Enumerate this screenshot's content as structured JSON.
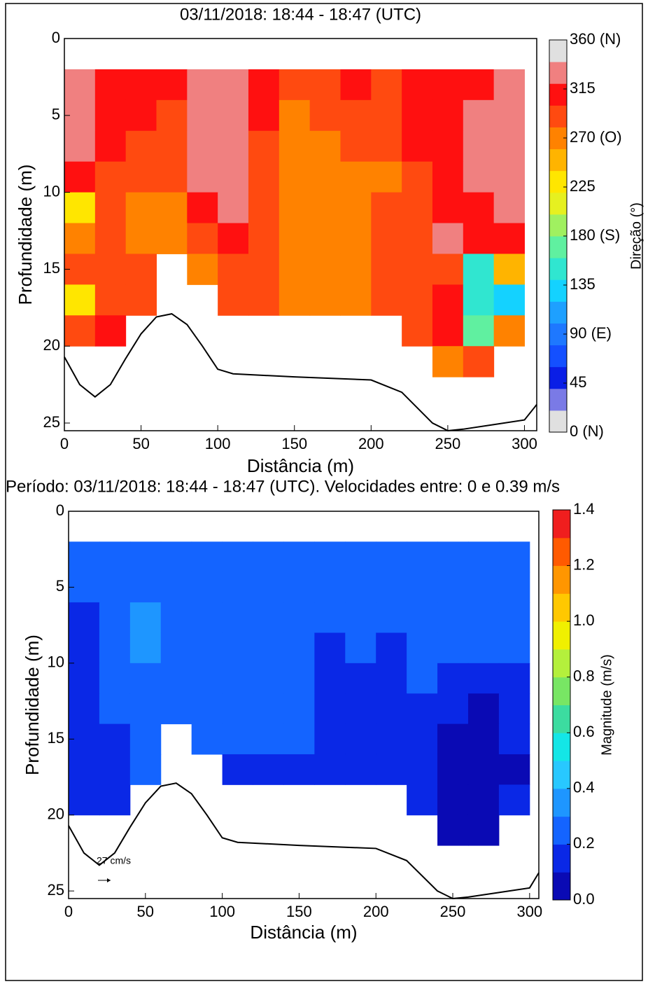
{
  "chart_data": [
    {
      "type": "heatmap",
      "title": "03/11/2018: 18:44 - 18:47 (UTC)",
      "x_label": "Distância (m)",
      "y_label": "Profundidade (m)",
      "colorbar_label": "Direção (°)",
      "xlim": [
        0,
        308
      ],
      "ylim": [
        0,
        25.5
      ],
      "y_inverted": true,
      "xticks": [
        0,
        50,
        100,
        150,
        200,
        250,
        300
      ],
      "yticks": [
        0,
        5,
        10,
        15,
        20,
        25
      ],
      "x": [
        10,
        30,
        50,
        70,
        90,
        110,
        130,
        150,
        170,
        190,
        210,
        230,
        250,
        270,
        290
      ],
      "y": [
        3,
        5,
        7,
        9,
        11,
        13,
        15,
        17,
        19,
        21
      ],
      "values": [
        [
          330,
          300,
          300,
          300,
          330,
          330,
          300,
          280,
          280,
          300,
          280,
          300,
          300,
          300,
          330
        ],
        [
          330,
          300,
          300,
          290,
          330,
          330,
          300,
          270,
          280,
          290,
          280,
          300,
          300,
          330,
          330
        ],
        [
          330,
          300,
          290,
          290,
          330,
          330,
          290,
          260,
          270,
          280,
          280,
          300,
          300,
          330,
          330
        ],
        [
          300,
          290,
          280,
          290,
          330,
          330,
          290,
          260,
          270,
          270,
          270,
          290,
          300,
          330,
          330
        ],
        [
          220,
          290,
          270,
          270,
          300,
          330,
          290,
          260,
          270,
          270,
          280,
          290,
          300,
          300,
          330
        ],
        [
          260,
          290,
          270,
          260,
          280,
          300,
          290,
          260,
          270,
          270,
          280,
          290,
          330,
          300,
          310
        ],
        [
          280,
          290,
          280,
          null,
          270,
          280,
          290,
          260,
          270,
          260,
          280,
          290,
          290,
          150,
          250
        ],
        [
          230,
          290,
          290,
          null,
          null,
          280,
          290,
          270,
          270,
          270,
          280,
          280,
          300,
          140,
          130
        ],
        [
          280,
          300,
          null,
          null,
          null,
          null,
          null,
          null,
          null,
          null,
          null,
          290,
          300,
          160,
          270
        ],
        [
          null,
          null,
          null,
          null,
          null,
          null,
          null,
          null,
          null,
          null,
          null,
          null,
          270,
          290,
          null
        ]
      ],
      "clim": [
        0,
        360
      ],
      "colors": [
        "#e0e0e0",
        "#7a7ae6",
        "#0a1ee6",
        "#1450ff",
        "#1e78ff",
        "#1ea0ff",
        "#14d2ff",
        "#30e6d0",
        "#60f0a0",
        "#a0f060",
        "#e6f020",
        "#ffe600",
        "#ffb400",
        "#ff8200",
        "#ff4a10",
        "#ff1010",
        "#f08080",
        "#e0e0e0"
      ],
      "cticks": [
        {
          "value": 0,
          "label": "0 (N)"
        },
        45,
        {
          "value": 90,
          "label": "90 (E)"
        },
        135,
        {
          "value": 180,
          "label": "180 (S)"
        },
        225,
        {
          "value": 270,
          "label": "270 (O)"
        },
        315,
        {
          "value": 360,
          "label": "360 (N)"
        }
      ],
      "series": [
        {
          "color": "#000000",
          "x": [
            0,
            10,
            20,
            30,
            40,
            50,
            60,
            70,
            80,
            90,
            100,
            110,
            150,
            200,
            220,
            240,
            250,
            260,
            280,
            300,
            308
          ],
          "values": [
            20.7,
            22.5,
            23.3,
            22.5,
            20.8,
            19.2,
            18.1,
            17.9,
            18.6,
            20,
            21.5,
            21.8,
            22,
            22.2,
            23,
            25,
            25.5,
            25.4,
            25.1,
            24.8,
            23.8
          ]
        }
      ]
    },
    {
      "type": "heatmap",
      "title": "Período: 03/11/2018: 18:44 - 18:47 (UTC). Velocidades entre: 0 e 0.39 m/s",
      "x_label": "Distância (m)",
      "y_label": "Profundidade (m)",
      "colorbar_label": "Magnitude (m/s)",
      "annotation": "27 cm/s",
      "xlim": [
        0,
        306
      ],
      "ylim": [
        0,
        25.5
      ],
      "y_inverted": true,
      "xticks": [
        0,
        50,
        100,
        150,
        200,
        250,
        300
      ],
      "yticks": [
        0,
        5,
        10,
        15,
        20,
        25
      ],
      "x": [
        10,
        30,
        50,
        70,
        90,
        110,
        130,
        150,
        170,
        190,
        210,
        230,
        250,
        270,
        290
      ],
      "y": [
        3,
        5,
        7,
        9,
        11,
        13,
        15,
        17,
        19,
        21
      ],
      "values": [
        [
          0.22,
          0.25,
          0.26,
          0.24,
          0.25,
          0.28,
          0.25,
          0.24,
          0.24,
          0.25,
          0.22,
          0.24,
          0.25,
          0.22,
          0.22
        ],
        [
          0.2,
          0.22,
          0.25,
          0.24,
          0.24,
          0.25,
          0.24,
          0.25,
          0.22,
          0.25,
          0.22,
          0.24,
          0.25,
          0.22,
          0.25
        ],
        [
          0.18,
          0.2,
          0.32,
          0.25,
          0.24,
          0.24,
          0.25,
          0.24,
          0.2,
          0.22,
          0.2,
          0.22,
          0.24,
          0.22,
          0.24
        ],
        [
          0.18,
          0.22,
          0.35,
          0.24,
          0.22,
          0.24,
          0.24,
          0.22,
          0.18,
          0.2,
          0.18,
          0.2,
          0.2,
          0.2,
          0.22
        ],
        [
          0.15,
          0.2,
          0.28,
          0.25,
          0.24,
          0.22,
          0.22,
          0.22,
          0.16,
          0.18,
          0.18,
          0.2,
          0.18,
          0.16,
          0.18
        ],
        [
          0.15,
          0.2,
          0.26,
          0.25,
          0.22,
          0.22,
          0.2,
          0.22,
          0.16,
          0.16,
          0.16,
          0.18,
          0.15,
          0.08,
          0.1
        ],
        [
          0.12,
          0.18,
          0.26,
          null,
          0.22,
          0.2,
          0.2,
          0.2,
          0.15,
          0.12,
          0.15,
          0.12,
          0.08,
          0.08,
          0.1
        ],
        [
          0.12,
          0.15,
          0.2,
          null,
          null,
          0.18,
          0.18,
          0.18,
          0.15,
          0.15,
          0.15,
          0.12,
          0.08,
          0.06,
          0.08
        ],
        [
          0.15,
          0.18,
          null,
          null,
          null,
          null,
          null,
          null,
          null,
          null,
          null,
          0.12,
          0.08,
          0.06,
          0.1
        ],
        [
          null,
          null,
          null,
          null,
          null,
          null,
          null,
          null,
          null,
          null,
          null,
          null,
          0.08,
          0.08,
          null
        ]
      ],
      "clim": [
        0,
        1.4
      ],
      "colors": [
        "#0a0ab4",
        "#0a28e6",
        "#1464ff",
        "#1e96ff",
        "#28c8ff",
        "#14e6e6",
        "#3cdca0",
        "#78e664",
        "#b4f03c",
        "#f0f000",
        "#ffc800",
        "#ff9600",
        "#ff5a00",
        "#f01e1e"
      ],
      "cticks": [
        {
          "value": 0,
          "label": "0.0"
        },
        0.2,
        0.4,
        0.6,
        0.8,
        {
          "value": 1,
          "label": "1.0"
        },
        1.2,
        1.4
      ],
      "series": [
        {
          "color": "#000000",
          "x": [
            0,
            10,
            20,
            30,
            40,
            50,
            60,
            70,
            80,
            90,
            100,
            110,
            150,
            200,
            220,
            240,
            250,
            260,
            280,
            300,
            306
          ],
          "values": [
            20.7,
            22.5,
            23.3,
            22.5,
            20.8,
            19.2,
            18.1,
            17.9,
            18.6,
            20,
            21.5,
            21.8,
            22,
            22.2,
            23,
            25,
            25.5,
            25.4,
            25.1,
            24.8,
            23.8
          ]
        }
      ]
    }
  ]
}
